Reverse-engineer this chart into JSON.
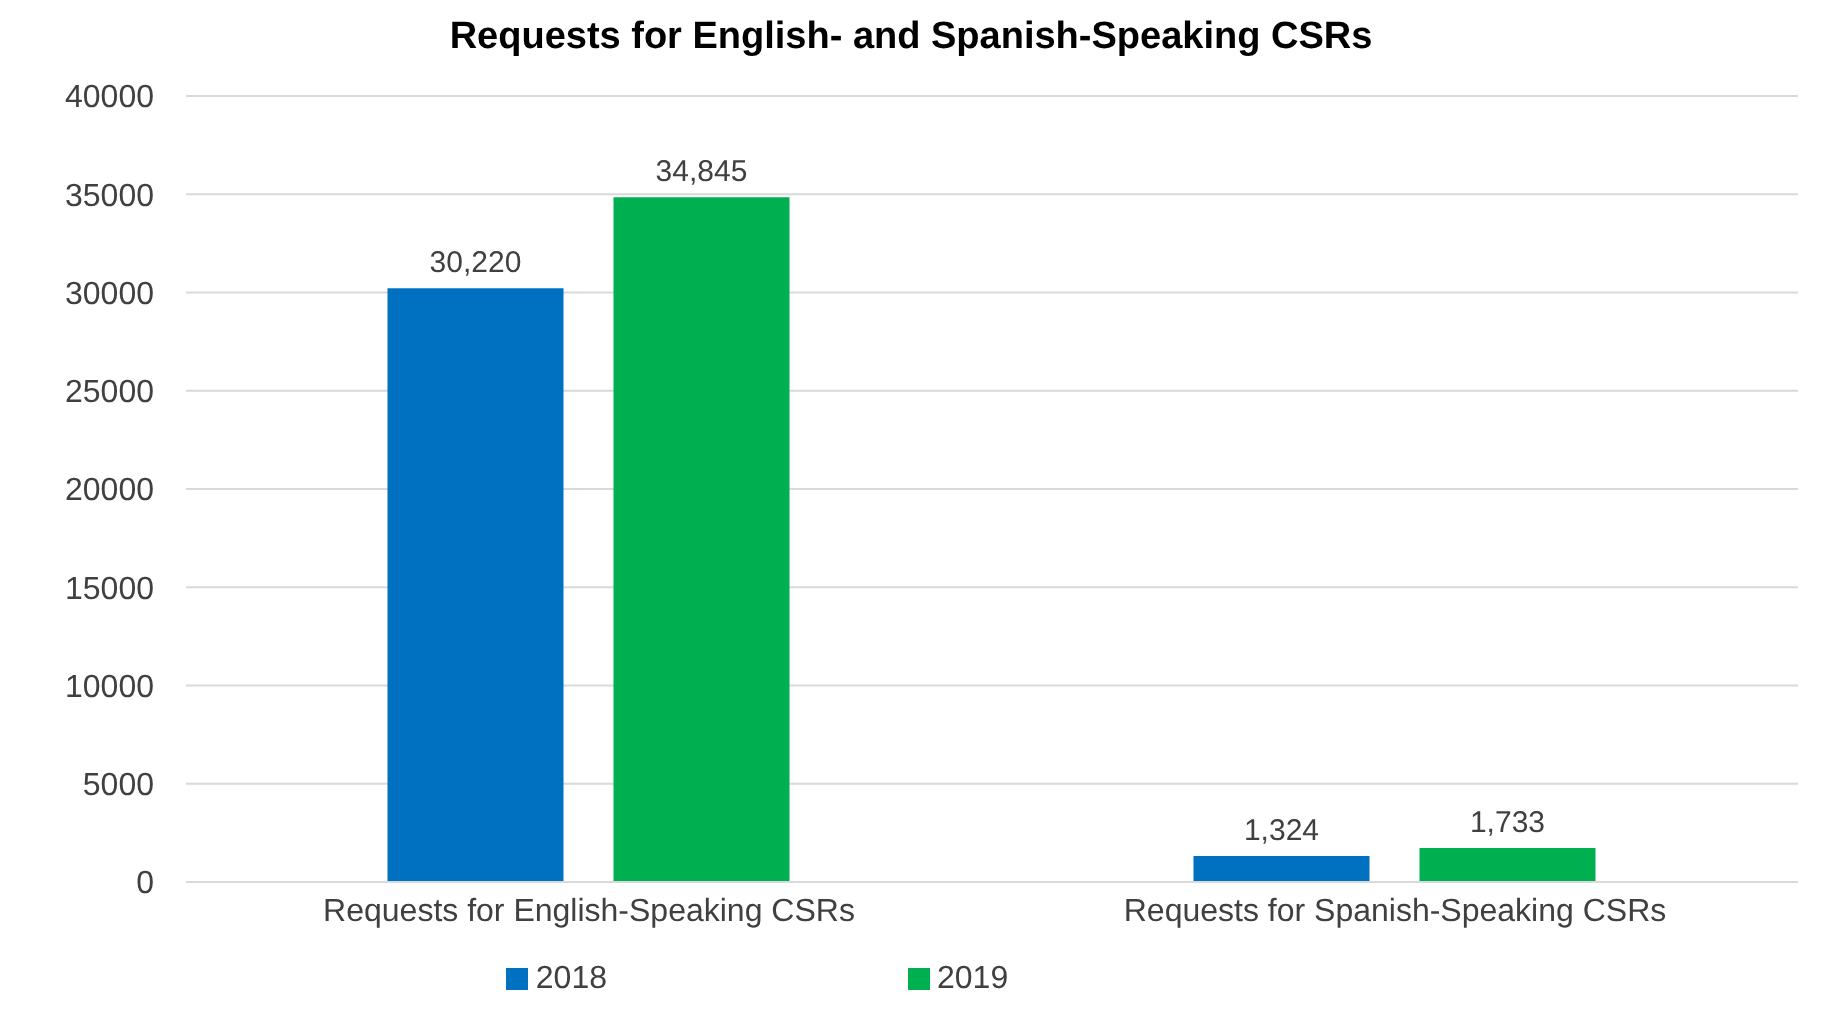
{
  "chart_data": {
    "type": "bar",
    "title": "Requests for English- and Spanish-Speaking CSRs",
    "categories": [
      "Requests for English-Speaking CSRs",
      "Requests for Spanish-Speaking CSRs"
    ],
    "series": [
      {
        "name": "2018",
        "color": "#0070c0",
        "values": [
          30220,
          1324
        ],
        "value_labels": [
          "30,220",
          "1,324"
        ]
      },
      {
        "name": "2019",
        "color": "#00b050",
        "values": [
          34845,
          1733
        ],
        "value_labels": [
          "34,845",
          "1,733"
        ]
      }
    ],
    "ylim": [
      0,
      40000
    ],
    "yticks": [
      0,
      5000,
      10000,
      15000,
      20000,
      25000,
      30000,
      35000,
      40000
    ],
    "grid": "y",
    "legend": "bottom"
  }
}
